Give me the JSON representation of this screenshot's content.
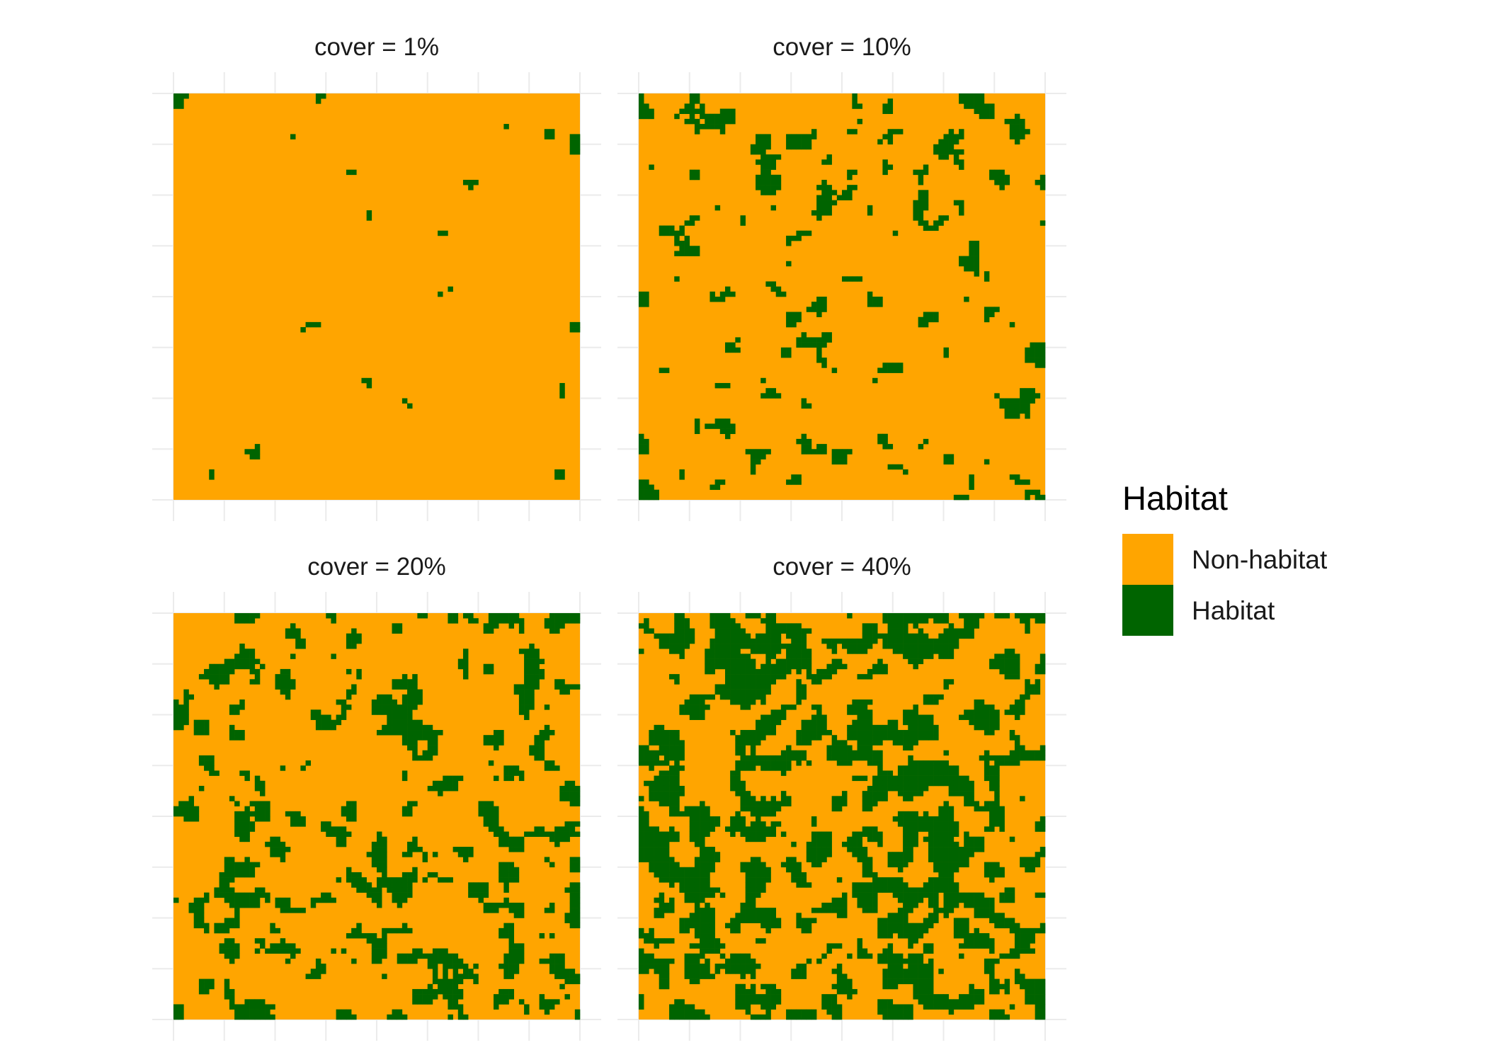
{
  "chart_data": {
    "type": "heatmap",
    "panels": [
      {
        "title": "cover = 1%",
        "cover": 0.01
      },
      {
        "title": "cover = 10%",
        "cover": 0.1
      },
      {
        "title": "cover = 20%",
        "cover": 0.2
      },
      {
        "title": "cover = 40%",
        "cover": 0.4
      }
    ],
    "grid": "on",
    "legend": {
      "title": "Habitat",
      "position": "right",
      "entries": [
        {
          "label": "Non-habitat",
          "color": "#FFA500"
        },
        {
          "label": "Habitat",
          "color": "#006400"
        }
      ]
    },
    "xlabel": "",
    "ylabel": ""
  }
}
